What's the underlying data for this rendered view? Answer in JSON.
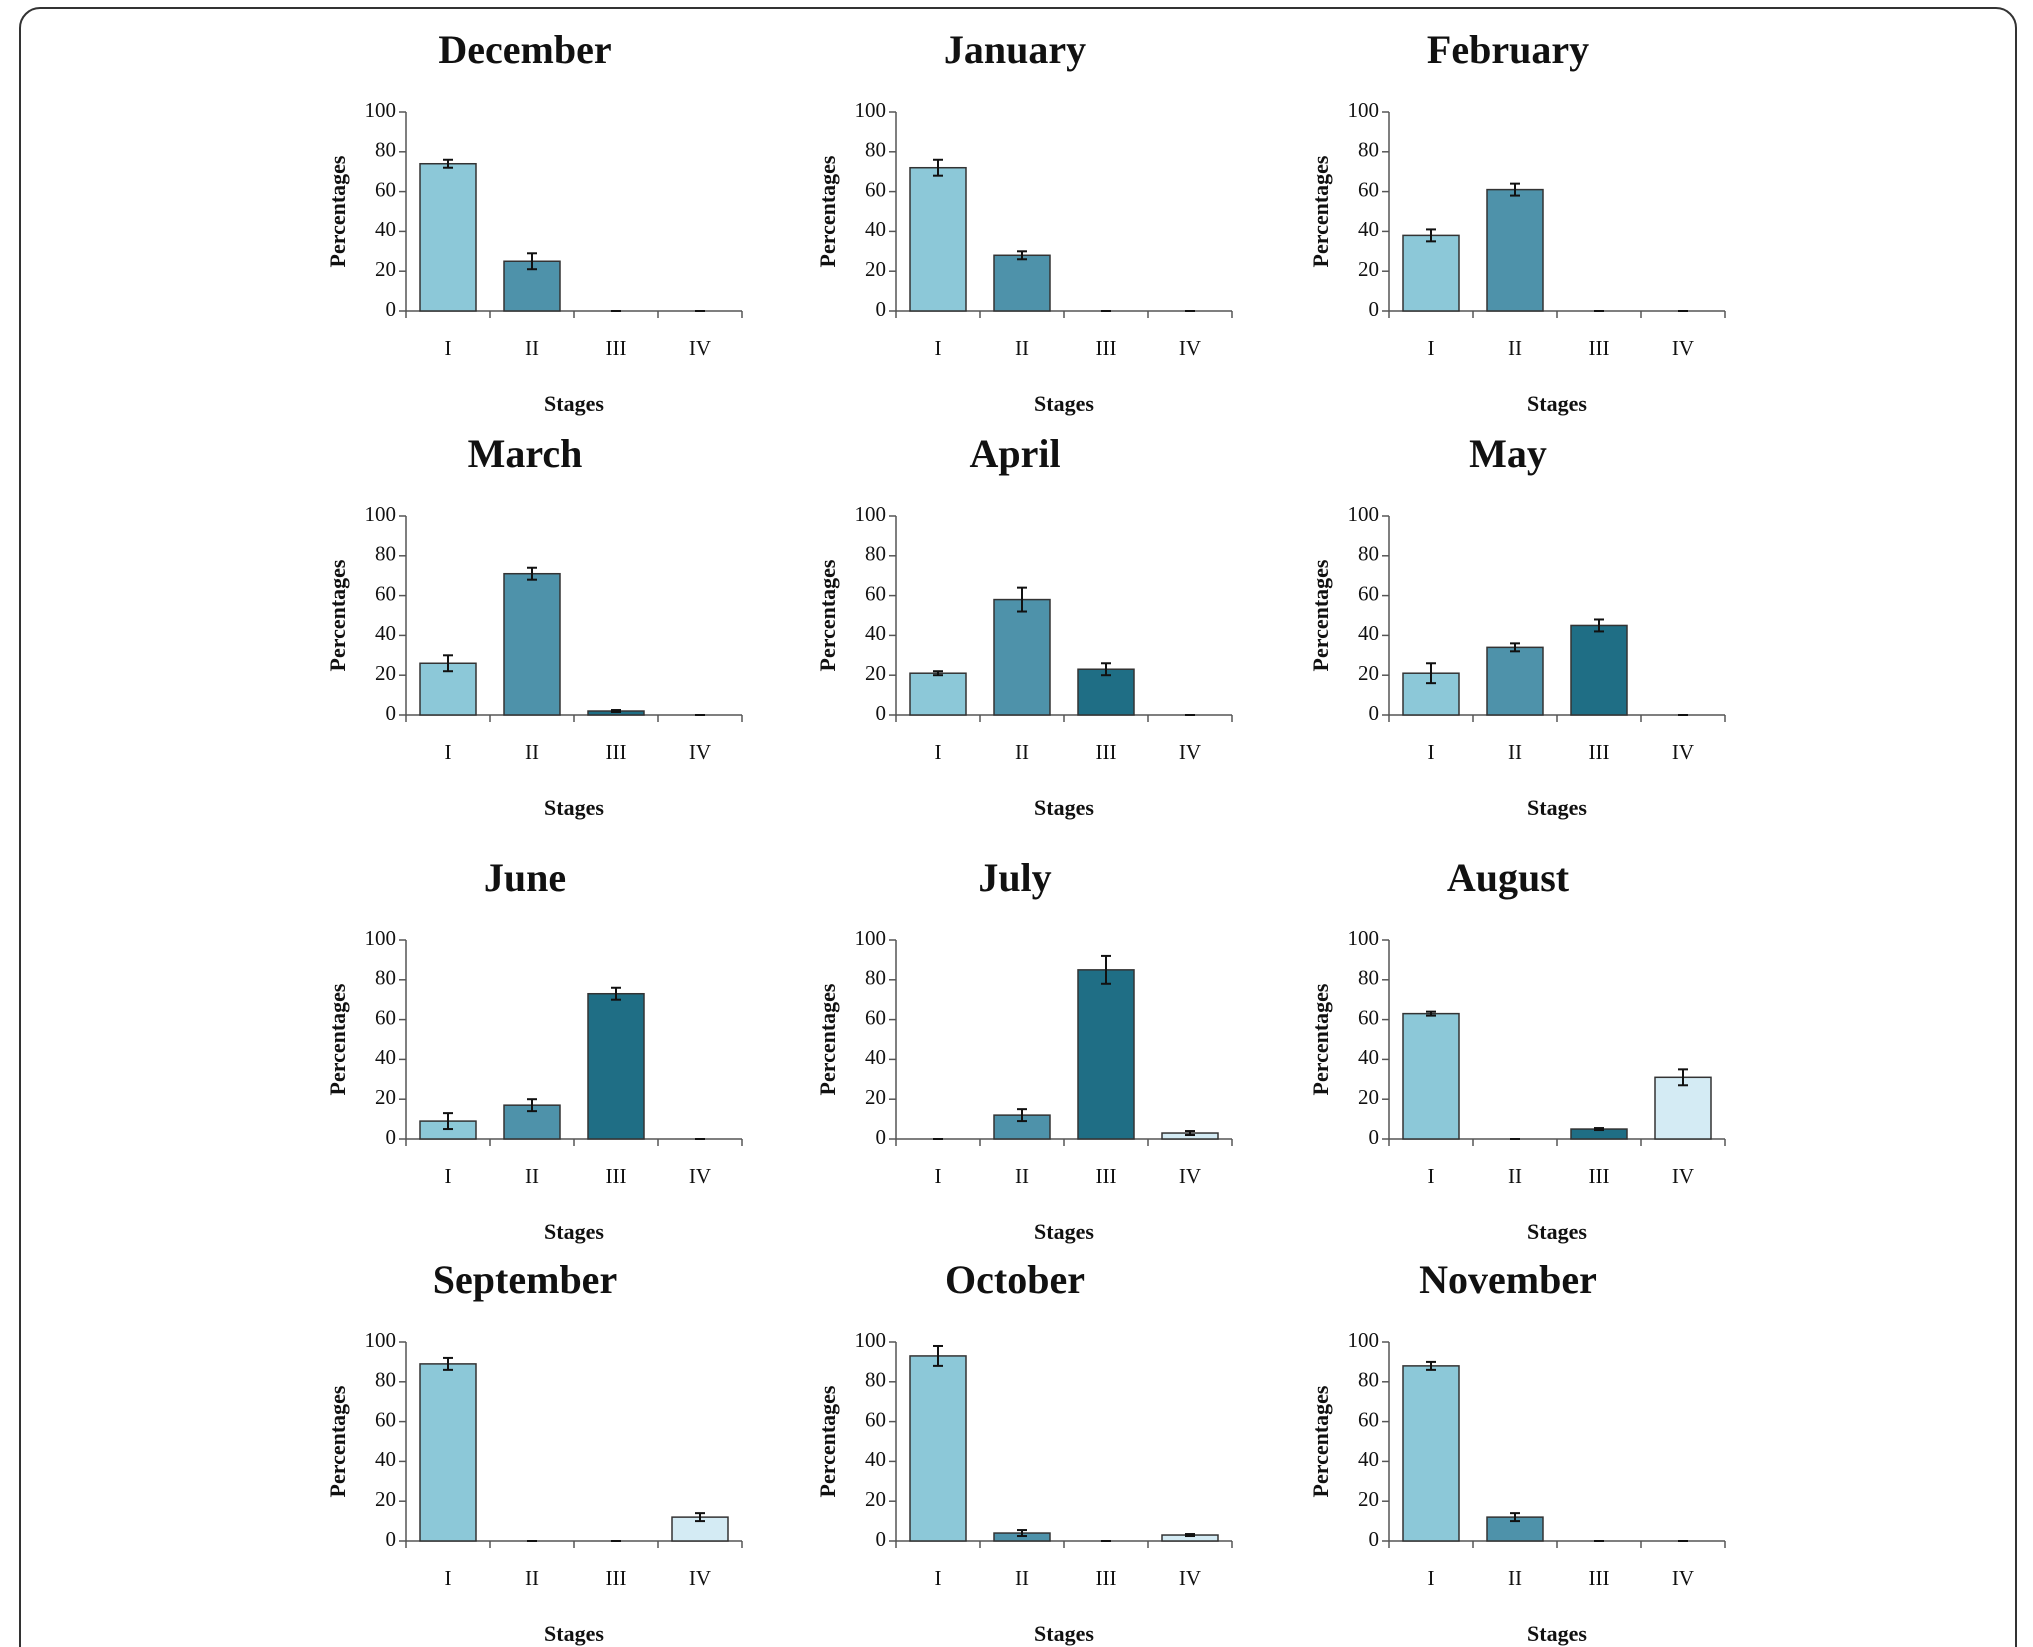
{
  "chart_data": [
    {
      "type": "bar",
      "title": "December",
      "categories": [
        "I",
        "II",
        "III",
        "IV"
      ],
      "values": [
        74,
        25,
        0,
        0
      ],
      "errors": [
        2,
        4,
        0,
        0
      ],
      "colors": [
        "#8cc8d8",
        "#4e92aa",
        "#1f6e85",
        "#d4ebf4"
      ],
      "ylabel": "Percentages",
      "xlabel": "Stages",
      "ylim": [
        0,
        100
      ],
      "yticks": [
        0,
        20,
        40,
        60,
        80,
        100
      ]
    },
    {
      "type": "bar",
      "title": "January",
      "categories": [
        "I",
        "II",
        "III",
        "IV"
      ],
      "values": [
        72,
        28,
        0,
        0
      ],
      "errors": [
        4,
        2,
        0,
        0
      ],
      "colors": [
        "#8cc8d8",
        "#4e92aa",
        "#1f6e85",
        "#d4ebf4"
      ],
      "ylabel": "Percentages",
      "xlabel": "Stages",
      "ylim": [
        0,
        100
      ],
      "yticks": [
        0,
        20,
        40,
        60,
        80,
        100
      ]
    },
    {
      "type": "bar",
      "title": "February",
      "categories": [
        "I",
        "II",
        "III",
        "IV"
      ],
      "values": [
        38,
        61,
        0,
        0
      ],
      "errors": [
        3,
        3,
        0,
        0
      ],
      "colors": [
        "#8cc8d8",
        "#4e92aa",
        "#1f6e85",
        "#d4ebf4"
      ],
      "ylabel": "Percentages",
      "xlabel": "Stages",
      "ylim": [
        0,
        100
      ],
      "yticks": [
        0,
        20,
        40,
        60,
        80,
        100
      ]
    },
    {
      "type": "bar",
      "title": "March",
      "categories": [
        "I",
        "II",
        "III",
        "IV"
      ],
      "values": [
        26,
        71,
        2,
        0
      ],
      "errors": [
        4,
        3,
        0.5,
        0
      ],
      "colors": [
        "#8cc8d8",
        "#4e92aa",
        "#1f6e85",
        "#d4ebf4"
      ],
      "ylabel": "Percentages",
      "xlabel": "Stages",
      "ylim": [
        0,
        100
      ],
      "yticks": [
        0,
        20,
        40,
        60,
        80,
        100
      ]
    },
    {
      "type": "bar",
      "title": "April",
      "categories": [
        "I",
        "II",
        "III",
        "IV"
      ],
      "values": [
        21,
        58,
        23,
        0
      ],
      "errors": [
        1,
        6,
        3,
        0
      ],
      "colors": [
        "#8cc8d8",
        "#4e92aa",
        "#1f6e85",
        "#d4ebf4"
      ],
      "ylabel": "Percentages",
      "xlabel": "Stages",
      "ylim": [
        0,
        100
      ],
      "yticks": [
        0,
        20,
        40,
        60,
        80,
        100
      ]
    },
    {
      "type": "bar",
      "title": "May",
      "categories": [
        "I",
        "II",
        "III",
        "IV"
      ],
      "values": [
        21,
        34,
        45,
        0
      ],
      "errors": [
        5,
        2,
        3,
        0
      ],
      "colors": [
        "#8cc8d8",
        "#4e92aa",
        "#1f6e85",
        "#d4ebf4"
      ],
      "ylabel": "Percentages",
      "xlabel": "Stages",
      "ylim": [
        0,
        100
      ],
      "yticks": [
        0,
        20,
        40,
        60,
        80,
        100
      ]
    },
    {
      "type": "bar",
      "title": "June",
      "categories": [
        "I",
        "II",
        "III",
        "IV"
      ],
      "values": [
        9,
        17,
        73,
        0
      ],
      "errors": [
        4,
        3,
        3,
        0
      ],
      "colors": [
        "#8cc8d8",
        "#4e92aa",
        "#1f6e85",
        "#d4ebf4"
      ],
      "ylabel": "Percentages",
      "xlabel": "Stages",
      "ylim": [
        0,
        100
      ],
      "yticks": [
        0,
        20,
        40,
        60,
        80,
        100
      ]
    },
    {
      "type": "bar",
      "title": "July",
      "categories": [
        "I",
        "II",
        "III",
        "IV"
      ],
      "values": [
        0,
        12,
        85,
        3
      ],
      "errors": [
        0,
        3,
        7,
        1
      ],
      "colors": [
        "#8cc8d8",
        "#4e92aa",
        "#1f6e85",
        "#d4ebf4"
      ],
      "ylabel": "Percentages",
      "xlabel": "Stages",
      "ylim": [
        0,
        100
      ],
      "yticks": [
        0,
        20,
        40,
        60,
        80,
        100
      ]
    },
    {
      "type": "bar",
      "title": "August",
      "categories": [
        "I",
        "II",
        "III",
        "IV"
      ],
      "values": [
        63,
        0,
        5,
        31
      ],
      "errors": [
        1,
        0,
        0.5,
        4
      ],
      "colors": [
        "#8cc8d8",
        "#4e92aa",
        "#1f6e85",
        "#d4ebf4"
      ],
      "ylabel": "Percentages",
      "xlabel": "Stages",
      "ylim": [
        0,
        100
      ],
      "yticks": [
        0,
        20,
        40,
        60,
        80,
        100
      ]
    },
    {
      "type": "bar",
      "title": "September",
      "categories": [
        "I",
        "II",
        "III",
        "IV"
      ],
      "values": [
        89,
        0,
        0,
        12
      ],
      "errors": [
        3,
        0,
        0,
        2
      ],
      "colors": [
        "#8cc8d8",
        "#4e92aa",
        "#1f6e85",
        "#d4ebf4"
      ],
      "ylabel": "Percentages",
      "xlabel": "Stages",
      "ylim": [
        0,
        100
      ],
      "yticks": [
        0,
        20,
        40,
        60,
        80,
        100
      ]
    },
    {
      "type": "bar",
      "title": "October",
      "categories": [
        "I",
        "II",
        "III",
        "IV"
      ],
      "values": [
        93,
        4,
        0,
        3
      ],
      "errors": [
        5,
        1.5,
        0,
        0.5
      ],
      "colors": [
        "#8cc8d8",
        "#4e92aa",
        "#1f6e85",
        "#d4ebf4"
      ],
      "ylabel": "Percentages",
      "xlabel": "Stages",
      "ylim": [
        0,
        100
      ],
      "yticks": [
        0,
        20,
        40,
        60,
        80,
        100
      ]
    },
    {
      "type": "bar",
      "title": "November",
      "categories": [
        "I",
        "II",
        "III",
        "IV"
      ],
      "values": [
        88,
        12,
        0,
        0
      ],
      "errors": [
        2,
        2,
        0,
        0
      ],
      "colors": [
        "#8cc8d8",
        "#4e92aa",
        "#1f6e85",
        "#d4ebf4"
      ],
      "ylabel": "Percentages",
      "xlabel": "Stages",
      "ylim": [
        0,
        100
      ],
      "yticks": [
        0,
        20,
        40,
        60,
        80,
        100
      ]
    }
  ]
}
